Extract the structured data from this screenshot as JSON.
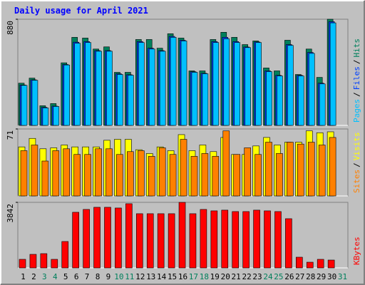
{
  "separator": "/",
  "chart_data": [
    {
      "type": "bar",
      "title": "Daily usage for April 2021",
      "ylim": [
        0,
        880
      ],
      "yticks": [
        880
      ],
      "series": [
        {
          "name": "Pages",
          "color": "#00c0ff",
          "values": [
            332,
            374,
            145,
            157,
            501,
            681,
            687,
            615,
            615,
            422,
            416,
            687,
            633,
            615,
            730,
            700,
            440,
            428,
            687,
            718,
            687,
            645,
            687,
            446,
            410,
            663,
            410,
            597,
            344,
            850,
            null
          ]
        },
        {
          "name": "Files",
          "color": "#0040ff",
          "values": [
            335,
            378,
            150,
            160,
            505,
            690,
            695,
            620,
            620,
            428,
            420,
            695,
            640,
            620,
            738,
            706,
            445,
            432,
            695,
            730,
            695,
            650,
            692,
            452,
            415,
            670,
            415,
            605,
            350,
            860,
            null
          ]
        },
        {
          "name": "Hits",
          "color": "#00805c",
          "values": [
            350,
            392,
            163,
            181,
            519,
            730,
            724,
            633,
            651,
            440,
            440,
            712,
            712,
            640,
            760,
            724,
            452,
            452,
            712,
            772,
            730,
            670,
            700,
            476,
            452,
            706,
            422,
            633,
            398,
            880,
            null
          ]
        }
      ]
    },
    {
      "type": "bar",
      "ylim": [
        0,
        71
      ],
      "yticks": [
        71
      ],
      "series": [
        {
          "name": "Sites",
          "color": "#ff8000",
          "values": [
            48,
            54,
            37,
            48,
            50,
            44,
            44,
            50,
            50,
            44,
            47,
            48,
            42,
            51,
            44,
            60,
            42,
            45,
            42,
            69,
            44,
            51,
            44,
            57,
            45,
            57,
            55,
            57,
            54,
            62,
            null
          ]
        },
        {
          "name": "Visits",
          "color": "#ffff00",
          "values": [
            52,
            61,
            50,
            51,
            54,
            52,
            52,
            52,
            59,
            60,
            60,
            49,
            45,
            52,
            48,
            65,
            48,
            54,
            47,
            62,
            44,
            44,
            53,
            62,
            54,
            57,
            57,
            69,
            67,
            68,
            null
          ]
        }
      ]
    },
    {
      "type": "bar",
      "ylim": [
        0,
        3842
      ],
      "yticks": [
        3842
      ],
      "series": [
        {
          "name": "KBytes",
          "color": "#ff0000",
          "values": [
            502,
            794,
            836,
            502,
            1547,
            3260,
            3427,
            3553,
            3553,
            3511,
            3762,
            3177,
            3177,
            3177,
            3177,
            3842,
            3177,
            3427,
            3344,
            3386,
            3302,
            3302,
            3386,
            3344,
            3302,
            2884,
            627,
            334,
            502,
            460,
            null
          ]
        }
      ],
      "categories": [
        "1",
        "2",
        "3",
        "4",
        "5",
        "6",
        "7",
        "8",
        "9",
        "10",
        "11",
        "12",
        "13",
        "14",
        "15",
        "16",
        "17",
        "18",
        "19",
        "20",
        "21",
        "22",
        "23",
        "24",
        "25",
        "26",
        "27",
        "28",
        "29",
        "30",
        "31"
      ],
      "category_colors": [
        "#000000",
        "#000000",
        "#00805c",
        "#00805c",
        "#000000",
        "#000000",
        "#000000",
        "#000000",
        "#000000",
        "#00805c",
        "#00805c",
        "#000000",
        "#000000",
        "#000000",
        "#000000",
        "#000000",
        "#00805c",
        "#00805c",
        "#000000",
        "#000000",
        "#000000",
        "#000000",
        "#000000",
        "#00805c",
        "#00805c",
        "#000000",
        "#000000",
        "#000000",
        "#000000",
        "#000000",
        "#00805c"
      ]
    }
  ]
}
